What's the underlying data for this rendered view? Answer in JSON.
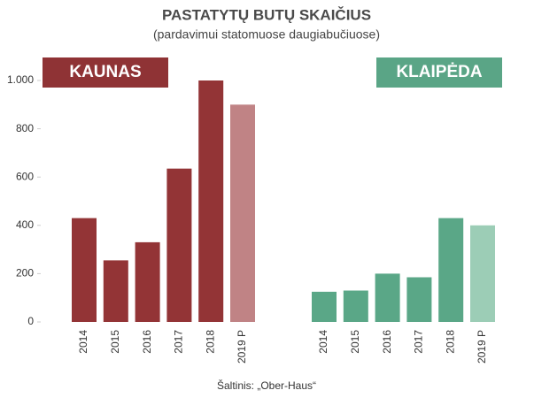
{
  "title": "PASTATYTŲ BUTŲ SKAIČIUS",
  "subtitle": "(pardavimui statomuose daugiabučiuose)",
  "source": "Šaltinis: „Ober-Haus“",
  "chart_data": [
    {
      "type": "bar",
      "title": "KAUNAS",
      "color": "#8f3335",
      "categories": [
        "2014",
        "2015",
        "2016",
        "2017",
        "2018",
        "2019 P"
      ],
      "values": [
        430,
        255,
        330,
        635,
        1000,
        900
      ],
      "colors": [
        "#933436",
        "#933436",
        "#933436",
        "#933436",
        "#933436",
        "#c08385"
      ],
      "ylim": [
        0,
        1000
      ],
      "yticks": [
        0,
        200,
        400,
        600,
        800,
        {
          "value": 1000,
          "label": "1.000"
        }
      ]
    },
    {
      "type": "bar",
      "title": "KLAIPĖDA",
      "color": "#5aa586",
      "categories": [
        "2014",
        "2015",
        "2016",
        "2017",
        "2018",
        "2019 P"
      ],
      "values": [
        125,
        130,
        200,
        185,
        430,
        400
      ],
      "colors": [
        "#5aa787",
        "#5aa787",
        "#5aa787",
        "#5aa787",
        "#5aa787",
        "#9ccdb6"
      ],
      "ylim": [
        0,
        1000
      ]
    }
  ]
}
